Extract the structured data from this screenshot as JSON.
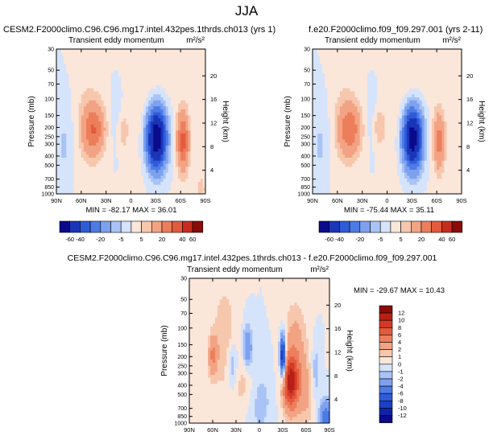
{
  "figure_title": "JJA",
  "chart_data": [
    {
      "type": "heatmap",
      "case_title": "CESM2.F2000climo.C96.C96.mg17.intel.432pes.1thrds.ch013 (yrs 1)",
      "panel_label": "Transient eddy momentum",
      "units_label": "m²/s²",
      "ylabel": "Pressure (mb)",
      "ylabel_right": "Height (km)",
      "xticks": [
        "90N",
        "60N",
        "30N",
        "0",
        "30S",
        "60S",
        "90S"
      ],
      "xtick_values": [
        90,
        60,
        30,
        0,
        -30,
        -60,
        -90
      ],
      "pressure_ticks": [
        "30",
        "50",
        "70",
        "100",
        "150",
        "200",
        "250",
        "300",
        "400",
        "500",
        "700",
        "850",
        "1000"
      ],
      "pressure_values": [
        30,
        50,
        70,
        100,
        150,
        200,
        250,
        300,
        400,
        500,
        700,
        850,
        1000
      ],
      "height_ticks": [
        "4",
        "8",
        "12",
        "16",
        "20"
      ],
      "height_values": [
        4,
        8,
        12,
        16,
        20
      ],
      "stats_text": "MIN = -82.17   MAX = 36.01",
      "min": -82.17,
      "max": 36.01,
      "features": [
        {
          "lat": 45,
          "p": 210,
          "sx": 9,
          "sy": 0.42,
          "amp": 28
        },
        {
          "lat": 54,
          "p": 130,
          "sx": 14,
          "sy": 1.4,
          "amp": 4
        },
        {
          "lat": 10,
          "p": 220,
          "sx": 5,
          "sy": 0.35,
          "amp": 8
        },
        {
          "lat": 17,
          "p": 160,
          "sx": 6,
          "sy": 0.6,
          "amp": -4
        },
        {
          "lat": -31,
          "p": 260,
          "sx": 8,
          "sy": 0.5,
          "amp": -80
        },
        {
          "lat": -63,
          "p": 280,
          "sx": 5,
          "sy": 0.5,
          "amp": 34
        },
        {
          "lat": -22,
          "p": 120,
          "sx": 20,
          "sy": 1.2,
          "amp": 4
        },
        {
          "lat": 80,
          "p": 300,
          "sx": 8,
          "sy": 0.9,
          "amp": -6
        },
        {
          "lat": -85,
          "p": 900,
          "sx": 6,
          "sy": 0.4,
          "amp": 6
        }
      ],
      "colorbar_levels": [
        "-60",
        "-40",
        "-20",
        "-5",
        "5",
        "20",
        "40",
        "60"
      ],
      "colorbar_level_values": [
        -60,
        -40,
        -30,
        -20,
        -10,
        -5,
        5,
        10,
        20,
        30,
        40,
        60
      ],
      "colorbar_orientation": "horizontal"
    },
    {
      "type": "heatmap",
      "case_title": "f.e20.F2000climo.f09_f09.297.001 (yrs 2-11)",
      "panel_label": "Transient eddy momentum",
      "units_label": "m²/s²",
      "ylabel": "Pressure (mb)",
      "ylabel_right": "Height (km)",
      "xticks": [
        "90N",
        "60N",
        "30N",
        "0",
        "30S",
        "60S",
        "90S"
      ],
      "xtick_values": [
        90,
        60,
        30,
        0,
        -30,
        -60,
        -90
      ],
      "pressure_ticks": [
        "30",
        "50",
        "70",
        "100",
        "150",
        "200",
        "250",
        "300",
        "400",
        "500",
        "700",
        "850",
        "1000"
      ],
      "pressure_values": [
        30,
        50,
        70,
        100,
        150,
        200,
        250,
        300,
        400,
        500,
        700,
        850,
        1000
      ],
      "height_ticks": [
        "4",
        "8",
        "12",
        "16",
        "20"
      ],
      "height_values": [
        4,
        8,
        12,
        16,
        20
      ],
      "stats_text": "MIN = -75.44   MAX = 35.11",
      "min": -75.44,
      "max": 35.11,
      "features": [
        {
          "lat": 45,
          "p": 210,
          "sx": 9,
          "sy": 0.42,
          "amp": 27
        },
        {
          "lat": 54,
          "p": 130,
          "sx": 14,
          "sy": 1.4,
          "amp": 4
        },
        {
          "lat": 10,
          "p": 200,
          "sx": 5,
          "sy": 0.35,
          "amp": 10
        },
        {
          "lat": 17,
          "p": 160,
          "sx": 6,
          "sy": 0.6,
          "amp": -4
        },
        {
          "lat": -31,
          "p": 260,
          "sx": 8,
          "sy": 0.5,
          "amp": -74
        },
        {
          "lat": -63,
          "p": 280,
          "sx": 5,
          "sy": 0.5,
          "amp": 24
        },
        {
          "lat": -22,
          "p": 120,
          "sx": 20,
          "sy": 1.2,
          "amp": 4
        },
        {
          "lat": 80,
          "p": 300,
          "sx": 8,
          "sy": 0.9,
          "amp": -6
        },
        {
          "lat": -85,
          "p": 900,
          "sx": 6,
          "sy": 0.4,
          "amp": 4
        }
      ],
      "colorbar_levels": [
        "-60",
        "-40",
        "-20",
        "-5",
        "5",
        "20",
        "40",
        "60"
      ],
      "colorbar_level_values": [
        -60,
        -40,
        -30,
        -20,
        -10,
        -5,
        5,
        10,
        20,
        30,
        40,
        60
      ],
      "colorbar_orientation": "horizontal"
    },
    {
      "type": "heatmap",
      "case_title": "CESM2.F2000climo.C96.C96.mg17.intel.432pes.1thrds.ch013 - f.e20.F2000climo.f09_f09.297.001",
      "panel_label": "Transient eddy momentum",
      "units_label": "m²/s²",
      "ylabel": "Pressure (mb)",
      "ylabel_right": "Height (km)",
      "xticks": [
        "90N",
        "60N",
        "30N",
        "0",
        "30S",
        "60S",
        "90S"
      ],
      "xtick_values": [
        90,
        60,
        30,
        0,
        -30,
        -60,
        -90
      ],
      "pressure_ticks": [
        "30",
        "50",
        "70",
        "100",
        "150",
        "200",
        "250",
        "300",
        "400",
        "500",
        "700",
        "850",
        "1000"
      ],
      "pressure_values": [
        30,
        50,
        70,
        100,
        150,
        200,
        250,
        300,
        400,
        500,
        700,
        850,
        1000
      ],
      "height_ticks": [
        "4",
        "8",
        "12",
        "16",
        "20"
      ],
      "height_values": [
        4,
        8,
        12,
        16,
        20
      ],
      "stats_text": "MIN = -29.67  MAX = 10.43",
      "min": -29.67,
      "max": 10.43,
      "features": [
        {
          "lat": 60,
          "p": 200,
          "sx": 4,
          "sy": 0.35,
          "amp": 4
        },
        {
          "lat": 45,
          "p": 130,
          "sx": 10,
          "sy": 0.9,
          "amp": 2
        },
        {
          "lat": 35,
          "p": 250,
          "sx": 5,
          "sy": 0.4,
          "amp": -2.5
        },
        {
          "lat": 15,
          "p": 160,
          "sx": 4,
          "sy": 0.35,
          "amp": -4
        },
        {
          "lat": 20,
          "p": 400,
          "sx": 10,
          "sy": 0.5,
          "amp": 1.5
        },
        {
          "lat": -30,
          "p": 200,
          "sx": 2.5,
          "sy": 0.35,
          "amp": -12
        },
        {
          "lat": -40,
          "p": 380,
          "sx": 7,
          "sy": 0.45,
          "amp": 10
        },
        {
          "lat": -46,
          "p": 180,
          "sx": 10,
          "sy": 0.8,
          "amp": 3
        },
        {
          "lat": -60,
          "p": 500,
          "sx": 8,
          "sy": 0.6,
          "amp": 2
        },
        {
          "lat": -72,
          "p": 300,
          "sx": 4,
          "sy": 0.5,
          "amp": -2
        },
        {
          "lat": -85,
          "p": 900,
          "sx": 5,
          "sy": 0.3,
          "amp": -6
        },
        {
          "lat": 0,
          "p": 600,
          "sx": 12,
          "sy": 0.6,
          "amp": -1.5
        }
      ],
      "colorbar_levels": [
        "12",
        "10",
        "8",
        "6",
        "4",
        "2",
        "1",
        "0",
        "-1",
        "-2",
        "-4",
        "-6",
        "-8",
        "-10",
        "-12"
      ],
      "colorbar_level_values": [
        12,
        10,
        8,
        6,
        4,
        2,
        1,
        0,
        -1,
        -2,
        -4,
        -6,
        -8,
        -10,
        -12
      ],
      "colorbar_orientation": "vertical"
    }
  ]
}
